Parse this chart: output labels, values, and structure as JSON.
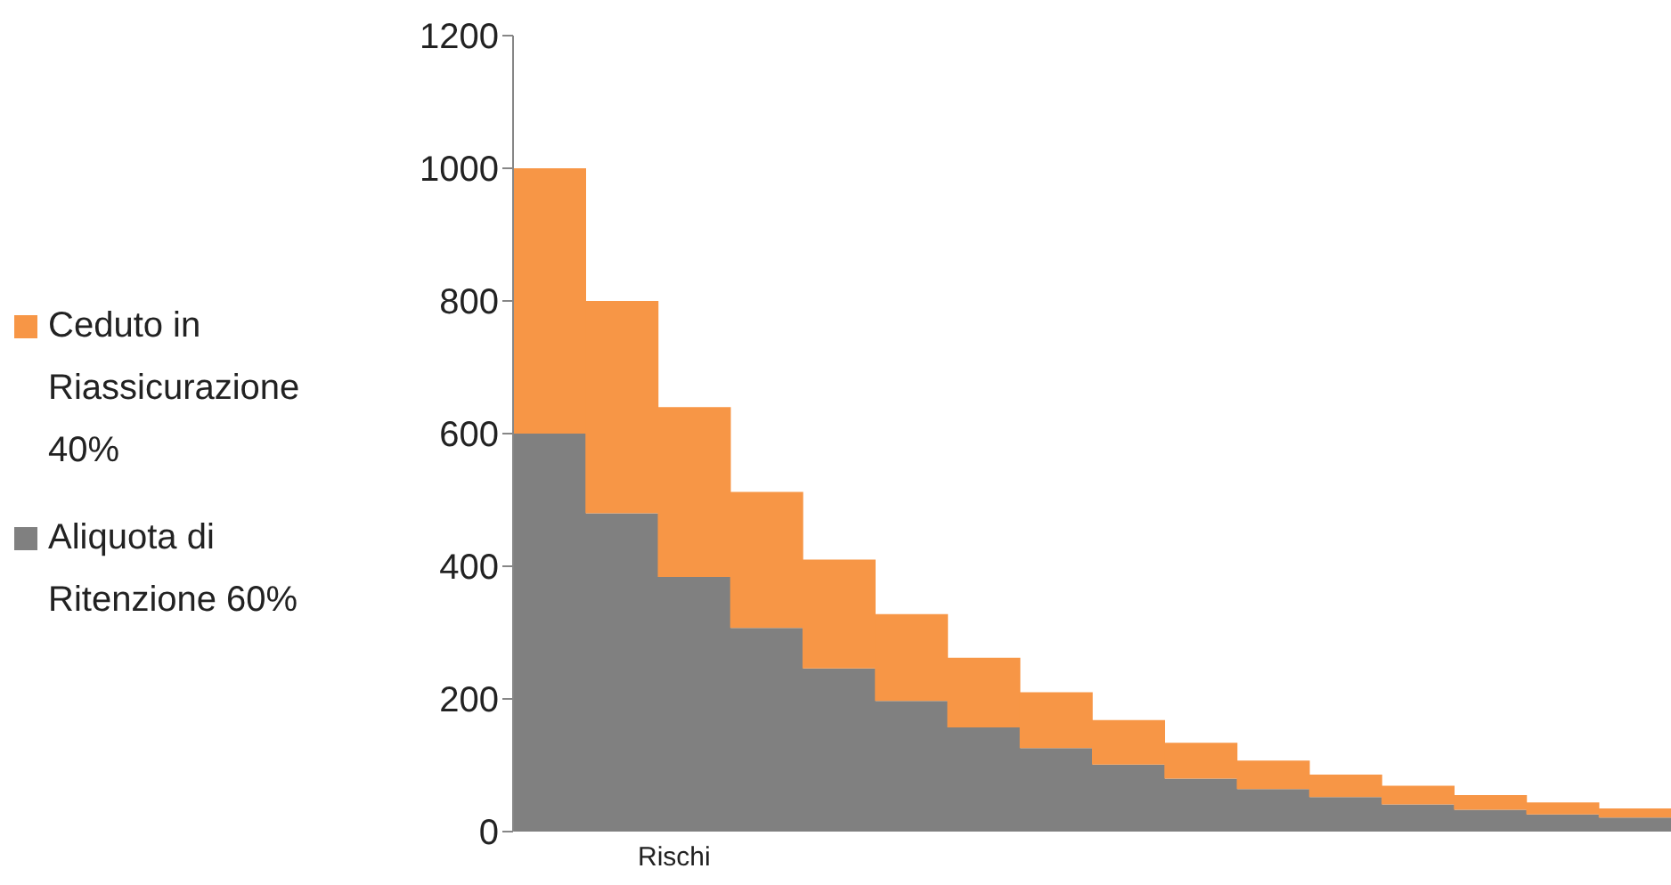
{
  "chart_data": {
    "type": "bar",
    "stacked": true,
    "xlabel": "Rischi",
    "categories": [
      null,
      null,
      null,
      null,
      null,
      null,
      null,
      null,
      null,
      null,
      null,
      null,
      null,
      null,
      null,
      null
    ],
    "series": [
      {
        "name": "Aliquota di Ritenzione 60%",
        "color": "#808080",
        "values": [
          600,
          480,
          384,
          307,
          246,
          197,
          157,
          126,
          101,
          80,
          64,
          52,
          41,
          33,
          26,
          21
        ]
      },
      {
        "name": "Ceduto in Riassicurazione 40%",
        "color": "#f79646",
        "values": [
          400,
          320,
          256,
          205,
          164,
          131,
          105,
          84,
          67,
          54,
          43,
          34,
          28,
          22,
          18,
          14
        ]
      }
    ],
    "ylim": [
      0,
      1200
    ],
    "yticks": [
      0,
      200,
      400,
      600,
      800,
      1000,
      1200
    ],
    "grid": false,
    "legend": "left"
  }
}
